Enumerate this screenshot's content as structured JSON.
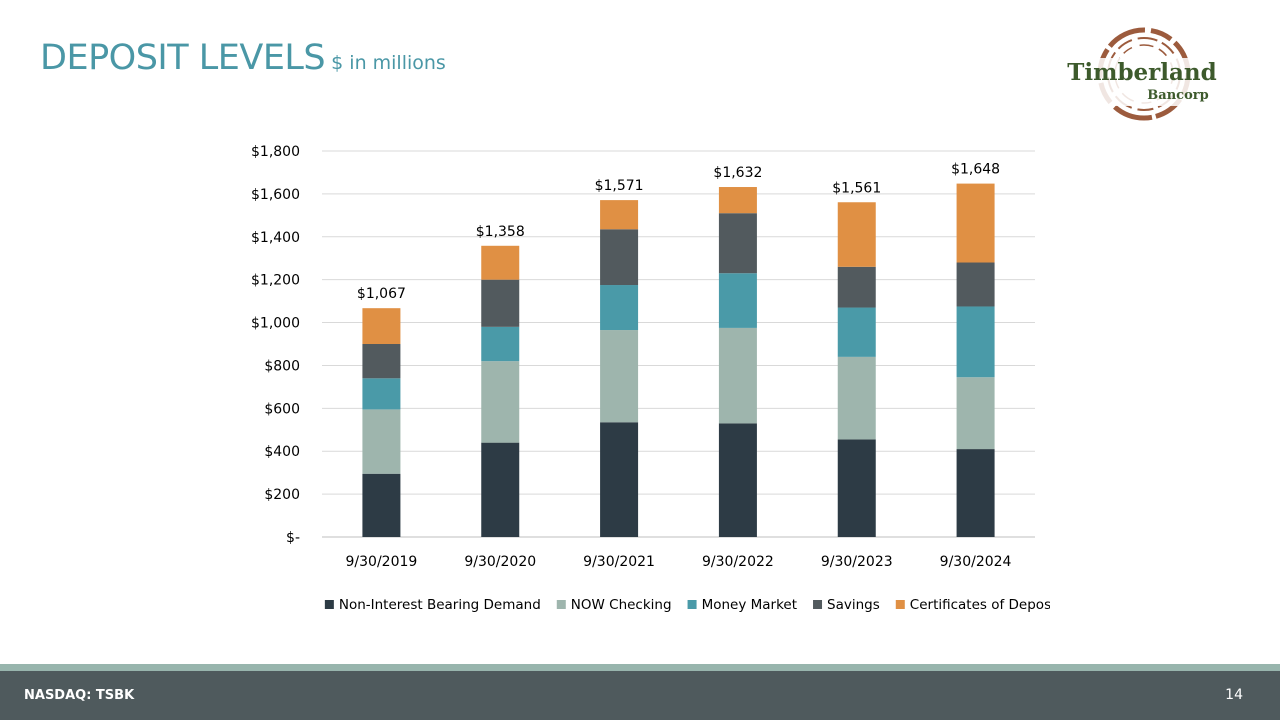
{
  "slide": {
    "title": "DEPOSIT LEVELS",
    "subtitle": "$ in millions",
    "page_number": "14"
  },
  "footer": {
    "ticker": "NASDAQ: TSBK"
  },
  "logo": {
    "name": "Timberland",
    "sub": "Bancorp"
  },
  "colors": {
    "title": "#4a97a6",
    "footer_bar": "#4f5a5d",
    "footer_stripe": "#98b5ad",
    "logo_text": "#3d5a2c",
    "logo_ring": "#9c5b3d"
  },
  "chart_data": {
    "type": "bar",
    "stacked": true,
    "categories": [
      "9/30/2019",
      "9/30/2020",
      "9/30/2021",
      "9/30/2022",
      "9/30/2023",
      "9/30/2024"
    ],
    "series": [
      {
        "name": "Non-Interest Bearing Demand",
        "color": "#2d3b45",
        "values": [
          295,
          440,
          535,
          530,
          455,
          410
        ]
      },
      {
        "name": "NOW Checking",
        "color": "#9eb5ad",
        "values": [
          300,
          380,
          430,
          445,
          385,
          335
        ]
      },
      {
        "name": "Money Market",
        "color": "#4a9aa8",
        "values": [
          145,
          160,
          210,
          255,
          230,
          330
        ]
      },
      {
        "name": "Savings",
        "color": "#525a5e",
        "values": [
          160,
          220,
          260,
          280,
          190,
          205
        ]
      },
      {
        "name": "Certificates of Deposit",
        "color": "#e09044",
        "values": [
          167,
          158,
          136,
          122,
          301,
          368
        ]
      }
    ],
    "totals": [
      1067,
      1358,
      1571,
      1632,
      1561,
      1648
    ],
    "total_labels": [
      "$1,067",
      "$1,358",
      "$1,571",
      "$1,632",
      "$1,561",
      "$1,648"
    ],
    "ylim": [
      0,
      1800
    ],
    "yticks": [
      0,
      200,
      400,
      600,
      800,
      1000,
      1200,
      1400,
      1600,
      1800
    ],
    "ytick_labels": [
      "$-",
      "$200",
      "$400",
      "$600",
      "$800",
      "$1,000",
      "$1,200",
      "$1,400",
      "$1,600",
      "$1,800"
    ],
    "grid": true,
    "legend_position": "bottom"
  }
}
